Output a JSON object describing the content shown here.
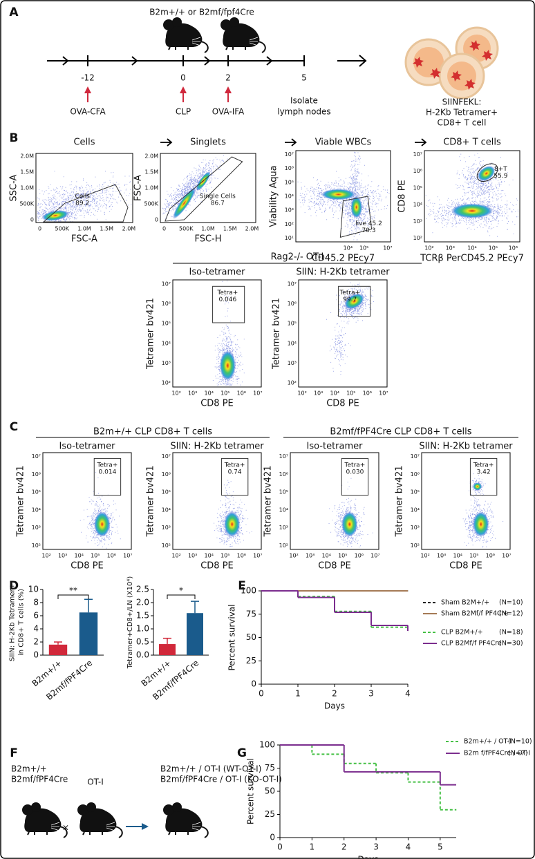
{
  "panel_a": {
    "letter": "A",
    "mice_label": "B2m+/+ or B2mf/fpf4Cre",
    "timeline": [
      {
        "day": "-12",
        "event": [
          "OVA-CFA"
        ]
      },
      {
        "day": "0",
        "event": [
          "CLP"
        ]
      },
      {
        "day": "2",
        "event": [
          "OVA-IFA"
        ]
      },
      {
        "day": "5",
        "event": [
          "Isolate",
          "lymph nodes"
        ]
      }
    ],
    "result": [
      "SIINFEKL:",
      "H-2Kb Tetramer+",
      "CD8+ T cell"
    ]
  },
  "panel_b": {
    "letter": "B",
    "plots": [
      {
        "title": "Cells",
        "xlabel": "FSC-A",
        "ylabel": "SSC-A",
        "xticks": [
          "0",
          "500K",
          "1.0M",
          "1.5M",
          "2.0M"
        ],
        "yticks": [
          "0",
          "500K",
          "1.0M",
          "1.5M",
          "2.0M"
        ],
        "gate": [
          "Cells",
          "89.2"
        ]
      },
      {
        "title": "Singlets",
        "xlabel": "FSC-H",
        "ylabel": "FSC-A",
        "xticks": [
          "0",
          "500K",
          "1.0M",
          "1.5M",
          "2.0M"
        ],
        "yticks": [
          "0",
          "500K",
          "1.0M",
          "1.5M",
          "2.0M"
        ],
        "gate": [
          "Single Cells",
          "86.7"
        ]
      },
      {
        "title": "Viable WBCs",
        "xlabel": "CD45.2 PEcy7",
        "ylabel": "Viability Aqua",
        "xticks": [
          "10⁴",
          "10⁵",
          "10⁷"
        ],
        "yticks": [
          "10¹",
          "10²",
          "10³",
          "10⁴",
          "10⁵",
          "10⁶",
          "10⁷"
        ],
        "gate": [
          "live 45.2",
          "70.3"
        ]
      },
      {
        "title": "CD8+ T cells",
        "xlabel": "TCRβ  PerCD45.2 PEcy7",
        "ylabel": "CD8 PE",
        "xticks": [
          "10²",
          "10³",
          "10⁴",
          "10⁵",
          "10⁶"
        ],
        "yticks": [
          "10²",
          "10³",
          "10⁴",
          "10⁵",
          "10⁶",
          "10⁷"
        ],
        "gate": [
          "8+T",
          "55.9"
        ]
      }
    ],
    "subpanel": {
      "title": "Rag2-/- OT-I",
      "plots": [
        {
          "title": "Iso-tetramer",
          "xlabel": "CD8 PE",
          "ylabel": "Tetramer bv421",
          "xticks": [
            "10²",
            "10³",
            "10⁴",
            "10⁵",
            "10⁶",
            "10⁷"
          ],
          "yticks": [
            "10²",
            "10³",
            "10⁴",
            "10⁵",
            "10⁶",
            "10⁷"
          ],
          "gate": [
            "Tetra+",
            "0.046"
          ]
        },
        {
          "title": "SIIN: H-2Kb tetramer",
          "xlabel": "CD8 PE",
          "ylabel": "Tetramer bv421",
          "xticks": [
            "10²",
            "10³",
            "10⁴",
            "10⁵",
            "10⁶",
            "10⁷"
          ],
          "yticks": [
            "10²",
            "10³",
            "10⁴",
            "10⁵",
            "10⁶",
            "10⁷"
          ],
          "gate": [
            "Tetra+",
            "99.7"
          ]
        }
      ]
    }
  },
  "panel_c": {
    "letter": "C",
    "groups": [
      {
        "title": "B2m+/+ CLP CD8+ T cells",
        "plots": [
          {
            "title": "Iso-tetramer",
            "xlabel": "CD8 PE",
            "ylabel": "Tetramer bv421",
            "xticks": [
              "10²",
              "10³",
              "10⁴",
              "10⁵",
              "10⁶",
              "10⁷"
            ],
            "yticks": [
              "10²",
              "10³",
              "10⁴",
              "10⁵",
              "10⁶",
              "10⁷"
            ],
            "gate": [
              "Tetra+",
              "0.014"
            ]
          },
          {
            "title": "SIIN: H-2Kb tetramer",
            "xlabel": "CD8 PE",
            "ylabel": "Tetramer bv421",
            "xticks": [
              "10²",
              "10³",
              "10⁴",
              "10⁵",
              "10⁶",
              "10⁷"
            ],
            "yticks": [
              "10²",
              "10³",
              "10⁴",
              "10⁵",
              "10⁶",
              "10⁷"
            ],
            "gate": [
              "Tetra+",
              "0.74"
            ]
          }
        ]
      },
      {
        "title": "B2mf/fPF4Cre CLP CD8+ T cells",
        "plots": [
          {
            "title": "Iso-tetramer",
            "xlabel": "CD8 PE",
            "ylabel": "Tetramer bv421",
            "xticks": [
              "10²",
              "10³",
              "10⁴",
              "10⁵",
              "10⁶",
              "10⁷"
            ],
            "yticks": [
              "10²",
              "10³",
              "10⁴",
              "10⁵",
              "10⁶",
              "10⁷"
            ],
            "gate": [
              "Tetra+",
              "0.030"
            ]
          },
          {
            "title": "SIIN: H-2Kb tetramer",
            "xlabel": "CD8 PE",
            "ylabel": "Tetramer bv421",
            "xticks": [
              "10²",
              "10³",
              "10⁴",
              "10⁵",
              "10⁶",
              "10⁷"
            ],
            "yticks": [
              "10²",
              "10³",
              "10⁴",
              "10⁵",
              "10⁶",
              "10⁷"
            ],
            "gate": [
              "Tetra+",
              "3.42"
            ]
          }
        ]
      }
    ]
  },
  "panel_f": {
    "letter": "F",
    "parents": [
      "B2m+/+",
      "B2mf/fPF4Cre"
    ],
    "cross_symbol": "×",
    "partner": "OT-I",
    "offspring": [
      "B2m+/+ / OT-I (WT-OT-I)",
      "B2mf/fPF4Cre / OT-I (KO-OT-I)"
    ]
  },
  "chart_data": [
    {
      "type": "bar",
      "panel": "D",
      "ylabel": [
        "SIIN: H-2Kb Tetramer+",
        "in CD8+ T cells (%)"
      ],
      "categories": [
        "B2m+/+",
        "B2mf/fPF4Cre"
      ],
      "values": [
        1.6,
        6.5
      ],
      "errors": [
        0.4,
        2.0
      ],
      "colors": [
        "#d1283a",
        "#1a5b8c"
      ],
      "ylim": [
        0,
        10
      ],
      "yticks": [
        0,
        2,
        4,
        6,
        8,
        10
      ],
      "annotation": "**"
    },
    {
      "type": "bar",
      "ylabel": [
        "Tetramer+CD8+/LN (X10⁴)"
      ],
      "categories": [
        "B2m+/+",
        "B2mf/fPF4Cre"
      ],
      "values": [
        0.42,
        1.6
      ],
      "errors": [
        0.22,
        0.45
      ],
      "colors": [
        "#d1283a",
        "#1a5b8c"
      ],
      "ylim": [
        0,
        2.5
      ],
      "yticks": [
        {
          "value": 0,
          "label": "0.0"
        },
        0.5,
        {
          "value": 1,
          "label": "1.0"
        },
        1.5,
        {
          "value": 2,
          "label": "2.0"
        },
        2.5
      ],
      "annotation": "*"
    },
    {
      "type": "line",
      "panel": "E",
      "xlabel": "Days",
      "ylabel": "Percent survival",
      "x": [
        0,
        1,
        2,
        3,
        4
      ],
      "xlim": [
        0,
        4
      ],
      "xticks": [
        0,
        1,
        2,
        3,
        4
      ],
      "ylim": [
        0,
        100
      ],
      "yticks": [
        0,
        25,
        50,
        75,
        100
      ],
      "series": [
        {
          "name": "Sham B2M+/+",
          "n_label": "(N=10)",
          "color": "#222222",
          "dashed": true,
          "values": [
            100,
            100,
            100,
            100,
            100
          ]
        },
        {
          "name": "Sham B2Mf/f PF4Cre",
          "n_label": "(N=12)",
          "color": "#a57a55",
          "dashed": false,
          "values": [
            100,
            100,
            100,
            100,
            100
          ]
        },
        {
          "name": "CLP B2M+/+",
          "n_label": "(N=18)",
          "color": "#45c045",
          "dashed": true,
          "values": [
            100,
            94,
            78,
            61,
            56
          ]
        },
        {
          "name": "CLP B2Mf/f PF4Cre",
          "n_label": "(N=30)",
          "color": "#7b2d8e",
          "dashed": false,
          "values": [
            100,
            93,
            77,
            63,
            57
          ]
        }
      ]
    },
    {
      "type": "line",
      "panel": "G",
      "xlabel": "Days",
      "ylabel": "Percent survival",
      "x": [
        0,
        1,
        2,
        3,
        4,
        5,
        5.5
      ],
      "xlim": [
        0,
        5.5
      ],
      "xticks": [
        0,
        1,
        2,
        3,
        4,
        5
      ],
      "ylim": [
        0,
        100
      ],
      "yticks": [
        0,
        25,
        50,
        75,
        100
      ],
      "series": [
        {
          "name": "B2m+/+ / OT-I",
          "n_label": "(N=10)",
          "color": "#45c045",
          "dashed": true,
          "values": [
            100,
            90,
            80,
            70,
            60,
            30,
            30
          ]
        },
        {
          "name": "B2m f/fPF4Cre / OT-I",
          "n_label": "(N=7)",
          "color": "#7b2d8e",
          "dashed": false,
          "values": [
            100,
            100,
            71,
            71,
            71,
            57,
            57
          ]
        }
      ]
    }
  ]
}
